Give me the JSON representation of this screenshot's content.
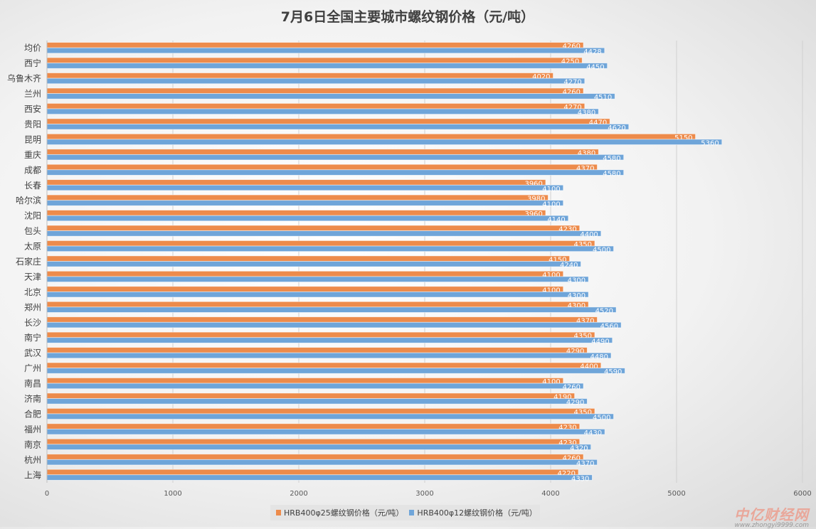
{
  "chart_data": {
    "type": "bar",
    "orientation": "horizontal",
    "title": "7月6日全国主要城市螺纹钢价格（元/吨）",
    "categories": [
      "均价",
      "西宁",
      "乌鲁木齐",
      "兰州",
      "西安",
      "贵阳",
      "昆明",
      "重庆",
      "成都",
      "长春",
      "哈尔滨",
      "沈阳",
      "包头",
      "太原",
      "石家庄",
      "天津",
      "北京",
      "郑州",
      "长沙",
      "南宁",
      "武汉",
      "广州",
      "南昌",
      "济南",
      "合肥",
      "福州",
      "南京",
      "杭州",
      "上海"
    ],
    "series": [
      {
        "name": "HRB400φ25螺纹钢价格（元/吨）",
        "color": "#ed8b4b",
        "values": [
          4260,
          4250,
          4020,
          4260,
          4270,
          4470,
          5150,
          4380,
          4370,
          3960,
          3980,
          3960,
          4230,
          4350,
          4150,
          4100,
          4100,
          4300,
          4370,
          4350,
          4290,
          4400,
          4100,
          4190,
          4350,
          4230,
          4230,
          4260,
          4220
        ]
      },
      {
        "name": "HRB400φ12螺纹钢价格（元/吨）",
        "color": "#6fa5d9",
        "values": [
          4428,
          4450,
          4270,
          4510,
          4380,
          4620,
          5360,
          4580,
          4580,
          4100,
          4100,
          4140,
          4400,
          4500,
          4240,
          4300,
          4300,
          4520,
          4560,
          4490,
          4480,
          4590,
          4260,
          4290,
          4500,
          4430,
          4320,
          4370,
          4330
        ]
      }
    ],
    "xlim": [
      0,
      6000
    ],
    "xticks": [
      "0",
      "1000",
      "2000",
      "3000",
      "4000",
      "5000",
      "6000"
    ],
    "grid": true,
    "data_labels": true,
    "legend_position": "bottom"
  },
  "watermark": {
    "logo": "中亿财经网",
    "url": "www.zhongyi9999.com"
  }
}
